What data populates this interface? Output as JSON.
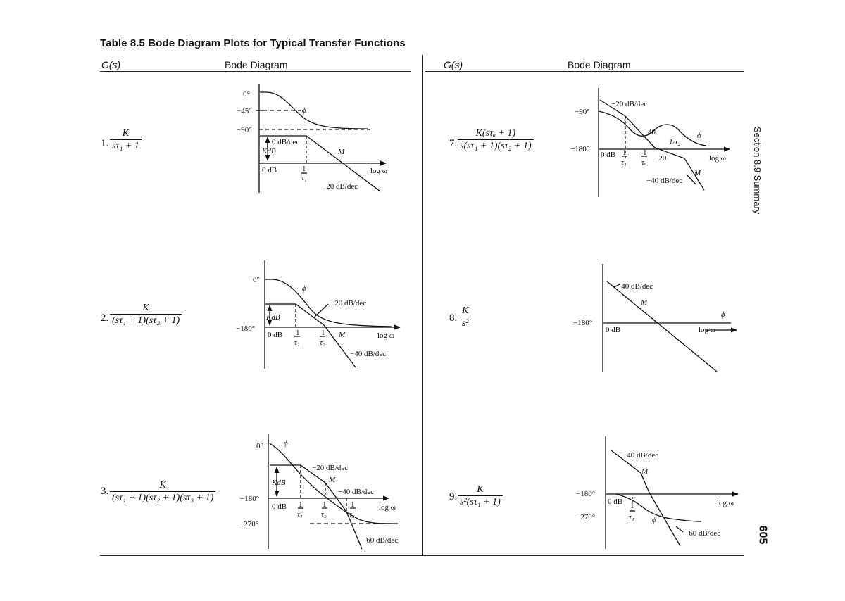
{
  "table_title": "Table 8.5   Bode Diagram Plots for Typical Transfer Functions",
  "headers": {
    "left_gs": "G(s)",
    "left_bode": "Bode Diagram",
    "right_gs": "G(s)",
    "right_bode": "Bode Diagram"
  },
  "side_label": "Section 8.9   Summary",
  "page_number": "605",
  "rows": [
    {
      "index": "1.",
      "num": "K",
      "den": "sτ₁ + 1"
    },
    {
      "index": "2.",
      "num": "K",
      "den": "(sτ₁ + 1)(sτ₂ + 1)"
    },
    {
      "index": "3.",
      "num": "K",
      "den": "(sτ₁ + 1)(sτ₂ + 1)(sτ₃ + 1)"
    },
    {
      "index": "7.",
      "num": "K(sτₐ + 1)",
      "den": "s(sτ₁ + 1)(sτ₂ + 1)"
    },
    {
      "index": "8.",
      "num": "K",
      "den": "s²"
    },
    {
      "index": "9.",
      "num": "K",
      "den": "s²(sτ₁ + 1)"
    }
  ],
  "plot1": {
    "deg0": "0°",
    "deg45": "−45°",
    "deg90": "−90°",
    "slope0": "0 dB/dec",
    "kdb": "KdB",
    "m": "M",
    "phi": "ϕ",
    "zero_db": "0 dB",
    "one": "1",
    "tau1": "τ₁",
    "logw": "log ω",
    "slope20": "−20 dB/dec"
  },
  "plot2": {
    "deg0": "0°",
    "deg180": "−180°",
    "phi": "ϕ",
    "slope20": "−20 dB/dec",
    "kdb": "KdB",
    "zero_db": "0 dB",
    "one": "1",
    "tau1": "τ₁",
    "tau2": "τ₂",
    "m": "M",
    "logw": "log ω",
    "slope40": "−40 dB/dec"
  },
  "plot3": {
    "deg0": "0°",
    "deg180": "−180°",
    "deg270": "−270°",
    "phi": "ϕ",
    "slope20": "−20 dB/dec",
    "m": "M",
    "kdb": "KdB",
    "slope40": "−40 dB/dec",
    "zero_db": "0 dB",
    "one": "1",
    "tau1": "τ₁",
    "tau2": "τ₂",
    "tau3": "τ₃",
    "logw": "log ω",
    "slope60": "−60 dB/dec"
  },
  "plot7": {
    "deg90": "−90°",
    "deg180": "−180°",
    "slope20": "−20 dB/dec",
    "forty": "40",
    "phi": "ϕ",
    "inv_tau2": "1/τ₂",
    "zero_db": "0 dB",
    "one": "1",
    "tau1": "τ₁",
    "taua": "τₐ",
    "minus20": "−20",
    "logw": "log ω",
    "m": "M",
    "slope40": "−40 dB/dec"
  },
  "plot8": {
    "slope40": "−40 dB/dec",
    "m": "M",
    "phi": "ϕ",
    "deg180": "−180°",
    "zero_db": "0 dB",
    "logw": "log ω"
  },
  "plot9": {
    "slope40": "−40 dB/dec",
    "m": "M",
    "deg180": "−180°",
    "zero_db": "0 dB",
    "one": "1",
    "tau1": "τ₁",
    "deg270": "−270°",
    "phi": "ϕ",
    "logw": "log ω",
    "slope60": "−60 dB/dec"
  }
}
